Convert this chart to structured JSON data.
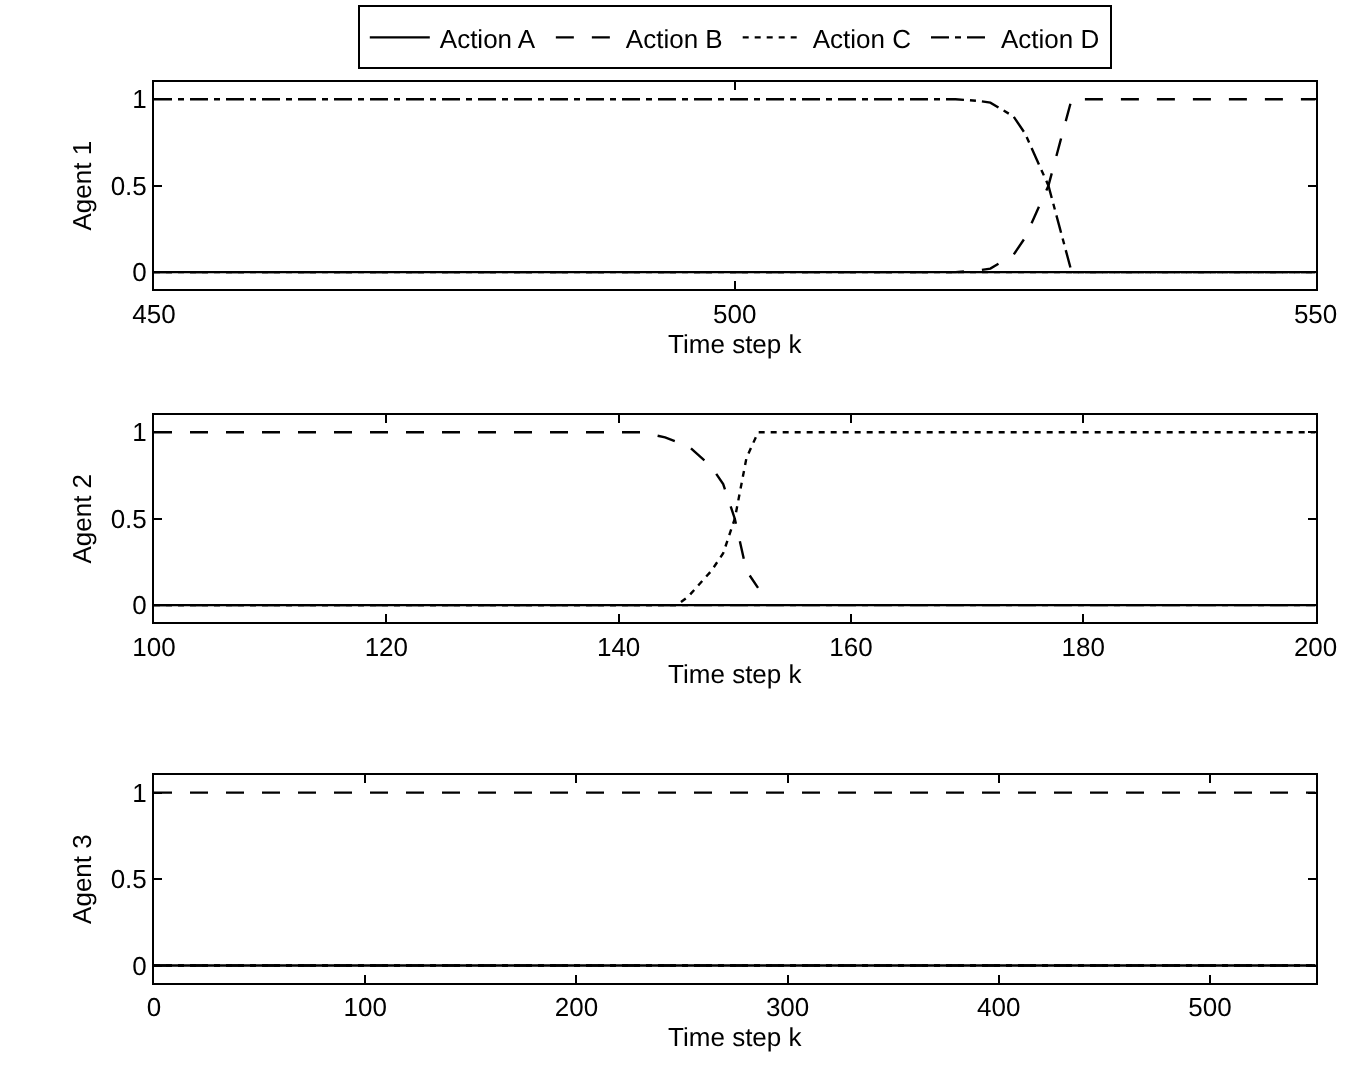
{
  "chart_data": [
    {
      "type": "line",
      "xlabel": "Time step k",
      "ylabel": "Agent 1",
      "xlim": [
        450,
        550
      ],
      "xticks": [
        450,
        500,
        550
      ],
      "ylim": [
        -0.1,
        1.1
      ],
      "yticks": [
        0,
        0.5,
        1
      ],
      "legend": "top",
      "marker": "none",
      "series": [
        {
          "name": "Action A",
          "color": "#000000",
          "line_style": "solid",
          "x": [
            450,
            550
          ],
          "values": [
            0,
            0
          ]
        },
        {
          "name": "Action B",
          "color": "#000000",
          "line_style": "dashed",
          "x": [
            450,
            519,
            521,
            522,
            524,
            525,
            526,
            527,
            528,
            529,
            550
          ],
          "values": [
            0,
            0,
            0.01,
            0.02,
            0.1,
            0.2,
            0.35,
            0.5,
            0.75,
            1,
            1
          ]
        },
        {
          "name": "Action C",
          "color": "#000000",
          "line_style": "dotted",
          "x": [
            450,
            550
          ],
          "values": [
            0,
            0
          ]
        },
        {
          "name": "Action D",
          "color": "#000000",
          "line_style": "dashdot",
          "x": [
            450,
            519,
            521,
            522,
            524,
            525,
            526,
            527,
            528,
            529,
            550
          ],
          "values": [
            1,
            1,
            0.99,
            0.98,
            0.9,
            0.8,
            0.65,
            0.5,
            0.25,
            0,
            0
          ]
        }
      ]
    },
    {
      "type": "line",
      "xlabel": "Time step k",
      "ylabel": "Agent 2",
      "xlim": [
        100,
        200
      ],
      "xticks": [
        100,
        120,
        140,
        160,
        180,
        200
      ],
      "ylim": [
        -0.1,
        1.1
      ],
      "yticks": [
        0,
        0.5,
        1
      ],
      "marker": "none",
      "series": [
        {
          "color": "#000000",
          "line_style": "solid",
          "x": [
            100,
            200
          ],
          "values": [
            0,
            0
          ]
        },
        {
          "color": "#000000",
          "line_style": "dashed",
          "x": [
            100,
            142,
            144,
            146,
            148,
            149,
            150,
            151,
            152
          ],
          "values": [
            1,
            1,
            0.97,
            0.92,
            0.8,
            0.7,
            0.5,
            0.2,
            0.1
          ]
        },
        {
          "color": "#000000",
          "line_style": "dotted",
          "x": [
            100,
            145,
            146,
            148,
            149,
            150,
            151,
            152,
            200
          ],
          "values": [
            0,
            0,
            0.05,
            0.2,
            0.3,
            0.5,
            0.85,
            1,
            1
          ]
        },
        {
          "color": "#000000",
          "line_style": "dashdot",
          "x": [
            100,
            200
          ],
          "values": [
            0,
            0
          ]
        }
      ]
    },
    {
      "type": "line",
      "xlabel": "Time step k",
      "ylabel": "Agent 3",
      "xlim": [
        0,
        550
      ],
      "xticks": [
        0,
        100,
        200,
        300,
        400,
        500
      ],
      "ylim": [
        -0.1,
        1.1
      ],
      "yticks": [
        0,
        0.5,
        1
      ],
      "marker": "none",
      "series": [
        {
          "color": "#000000",
          "line_style": "solid",
          "x": [
            0,
            550
          ],
          "values": [
            0,
            0
          ]
        },
        {
          "color": "#000000",
          "line_style": "dashed",
          "x": [
            0,
            550
          ],
          "values": [
            1,
            1
          ]
        },
        {
          "color": "#000000",
          "line_style": "dotted",
          "x": [
            0,
            550
          ],
          "values": [
            0,
            0
          ]
        },
        {
          "color": "#000000",
          "line_style": "dashdot",
          "x": [
            0,
            550
          ],
          "values": [
            0,
            0
          ]
        }
      ]
    }
  ]
}
